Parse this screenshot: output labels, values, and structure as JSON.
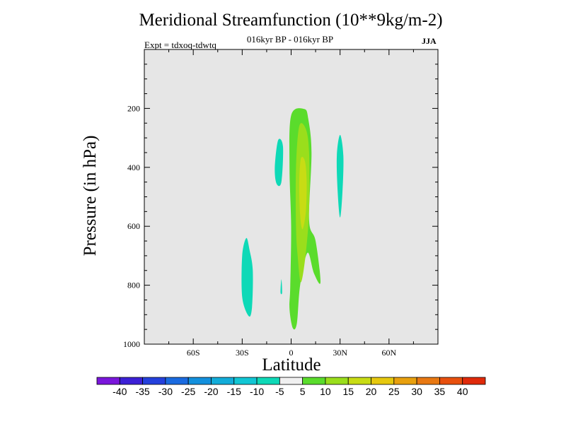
{
  "chart_data": {
    "type": "contour",
    "title": "Meridional Streamfunction (10**9kg/m-2)",
    "subtitle": "016kyr BP - 016kyr BP",
    "experiment": "Expt = tdxoq-tdwtq",
    "season": "JJA",
    "xlabel": "Latitude",
    "ylabel": "Pressure (in hPa)",
    "xlim": [
      -90,
      90
    ],
    "ylim": [
      1000,
      0
    ],
    "x_tick_values": [
      -60,
      -30,
      0,
      30,
      60
    ],
    "x_tick_labels": [
      "60S",
      "30S",
      "0",
      "30N",
      "60N"
    ],
    "y_tick_values": [
      200,
      400,
      600,
      800,
      1000
    ],
    "y_tick_labels": [
      "200",
      "400",
      "600",
      "800",
      "1000"
    ],
    "background_color": "#e6e6e6",
    "contour_levels": [
      -40,
      -35,
      -30,
      -25,
      -20,
      -15,
      -10,
      -5,
      5,
      10,
      15,
      20,
      25,
      30,
      35,
      40
    ],
    "colorbar_colors": [
      "#7a16db",
      "#3c20d6",
      "#2440dc",
      "#1a6ae0",
      "#1390dd",
      "#12acd9",
      "#11c6d4",
      "#0ed9b7",
      "#f0f0f0",
      "#5adc2c",
      "#9ade1c",
      "#c8dc14",
      "#e6c80e",
      "#e8a00e",
      "#e87812",
      "#e8500e",
      "#e02a0a"
    ],
    "regions": [
      {
        "label": "southern negative cell",
        "value": -7.5,
        "color": "#0ed9b7",
        "points": [
          [
            -26,
            905
          ],
          [
            -24,
            875
          ],
          [
            -23.5,
            750
          ],
          [
            -25.5,
            680
          ],
          [
            -27.5,
            640
          ],
          [
            -30,
            700
          ],
          [
            -30,
            840
          ]
        ]
      },
      {
        "label": "upper negative cell 5S",
        "value": -7.5,
        "color": "#0ed9b7",
        "points": [
          [
            -6,
            450
          ],
          [
            -5,
            330
          ],
          [
            -8,
            308
          ],
          [
            -10,
            400
          ],
          [
            -9,
            455
          ]
        ]
      },
      {
        "label": "negative sliver 6S",
        "value": -7.5,
        "color": "#0ed9b7",
        "points": [
          [
            -6,
            780
          ],
          [
            -5.5,
            825
          ],
          [
            -6.5,
            825
          ]
        ]
      },
      {
        "label": "northern negative cell 30N",
        "value": -7.5,
        "color": "#0ed9b7",
        "points": [
          [
            30,
            290
          ],
          [
            32,
            360
          ],
          [
            31.5,
            480
          ],
          [
            30,
            570
          ],
          [
            28.5,
            480
          ],
          [
            28,
            360
          ]
        ]
      },
      {
        "label": "positive cell outer",
        "value": 7.5,
        "color": "#5adc2c",
        "points": [
          [
            1,
            945
          ],
          [
            3.5,
            930
          ],
          [
            5.5,
            800
          ],
          [
            10,
            690
          ],
          [
            14,
            760
          ],
          [
            18,
            790
          ],
          [
            15,
            650
          ],
          [
            11,
            580
          ],
          [
            12.5,
            350
          ],
          [
            10.5,
            235
          ],
          [
            8,
            202
          ],
          [
            0,
            224
          ],
          [
            -1,
            400
          ],
          [
            0,
            600
          ],
          [
            -0.5,
            800
          ],
          [
            -1,
            880
          ]
        ]
      },
      {
        "label": "positive cell 10-15",
        "value": 12.5,
        "color": "#9ade1c",
        "points": [
          [
            6,
            790
          ],
          [
            9,
            690
          ],
          [
            11,
            540
          ],
          [
            11,
            350
          ],
          [
            9,
            270
          ],
          [
            5,
            260
          ],
          [
            3,
            400
          ],
          [
            3,
            600
          ],
          [
            4,
            700
          ]
        ]
      },
      {
        "label": "positive cell 15-20",
        "value": 17.5,
        "color": "#c8dc14",
        "points": [
          [
            7,
            610
          ],
          [
            9,
            550
          ],
          [
            9.5,
            450
          ],
          [
            8.5,
            380
          ],
          [
            6,
            370
          ],
          [
            5,
            450
          ],
          [
            5.5,
            560
          ]
        ]
      }
    ]
  }
}
